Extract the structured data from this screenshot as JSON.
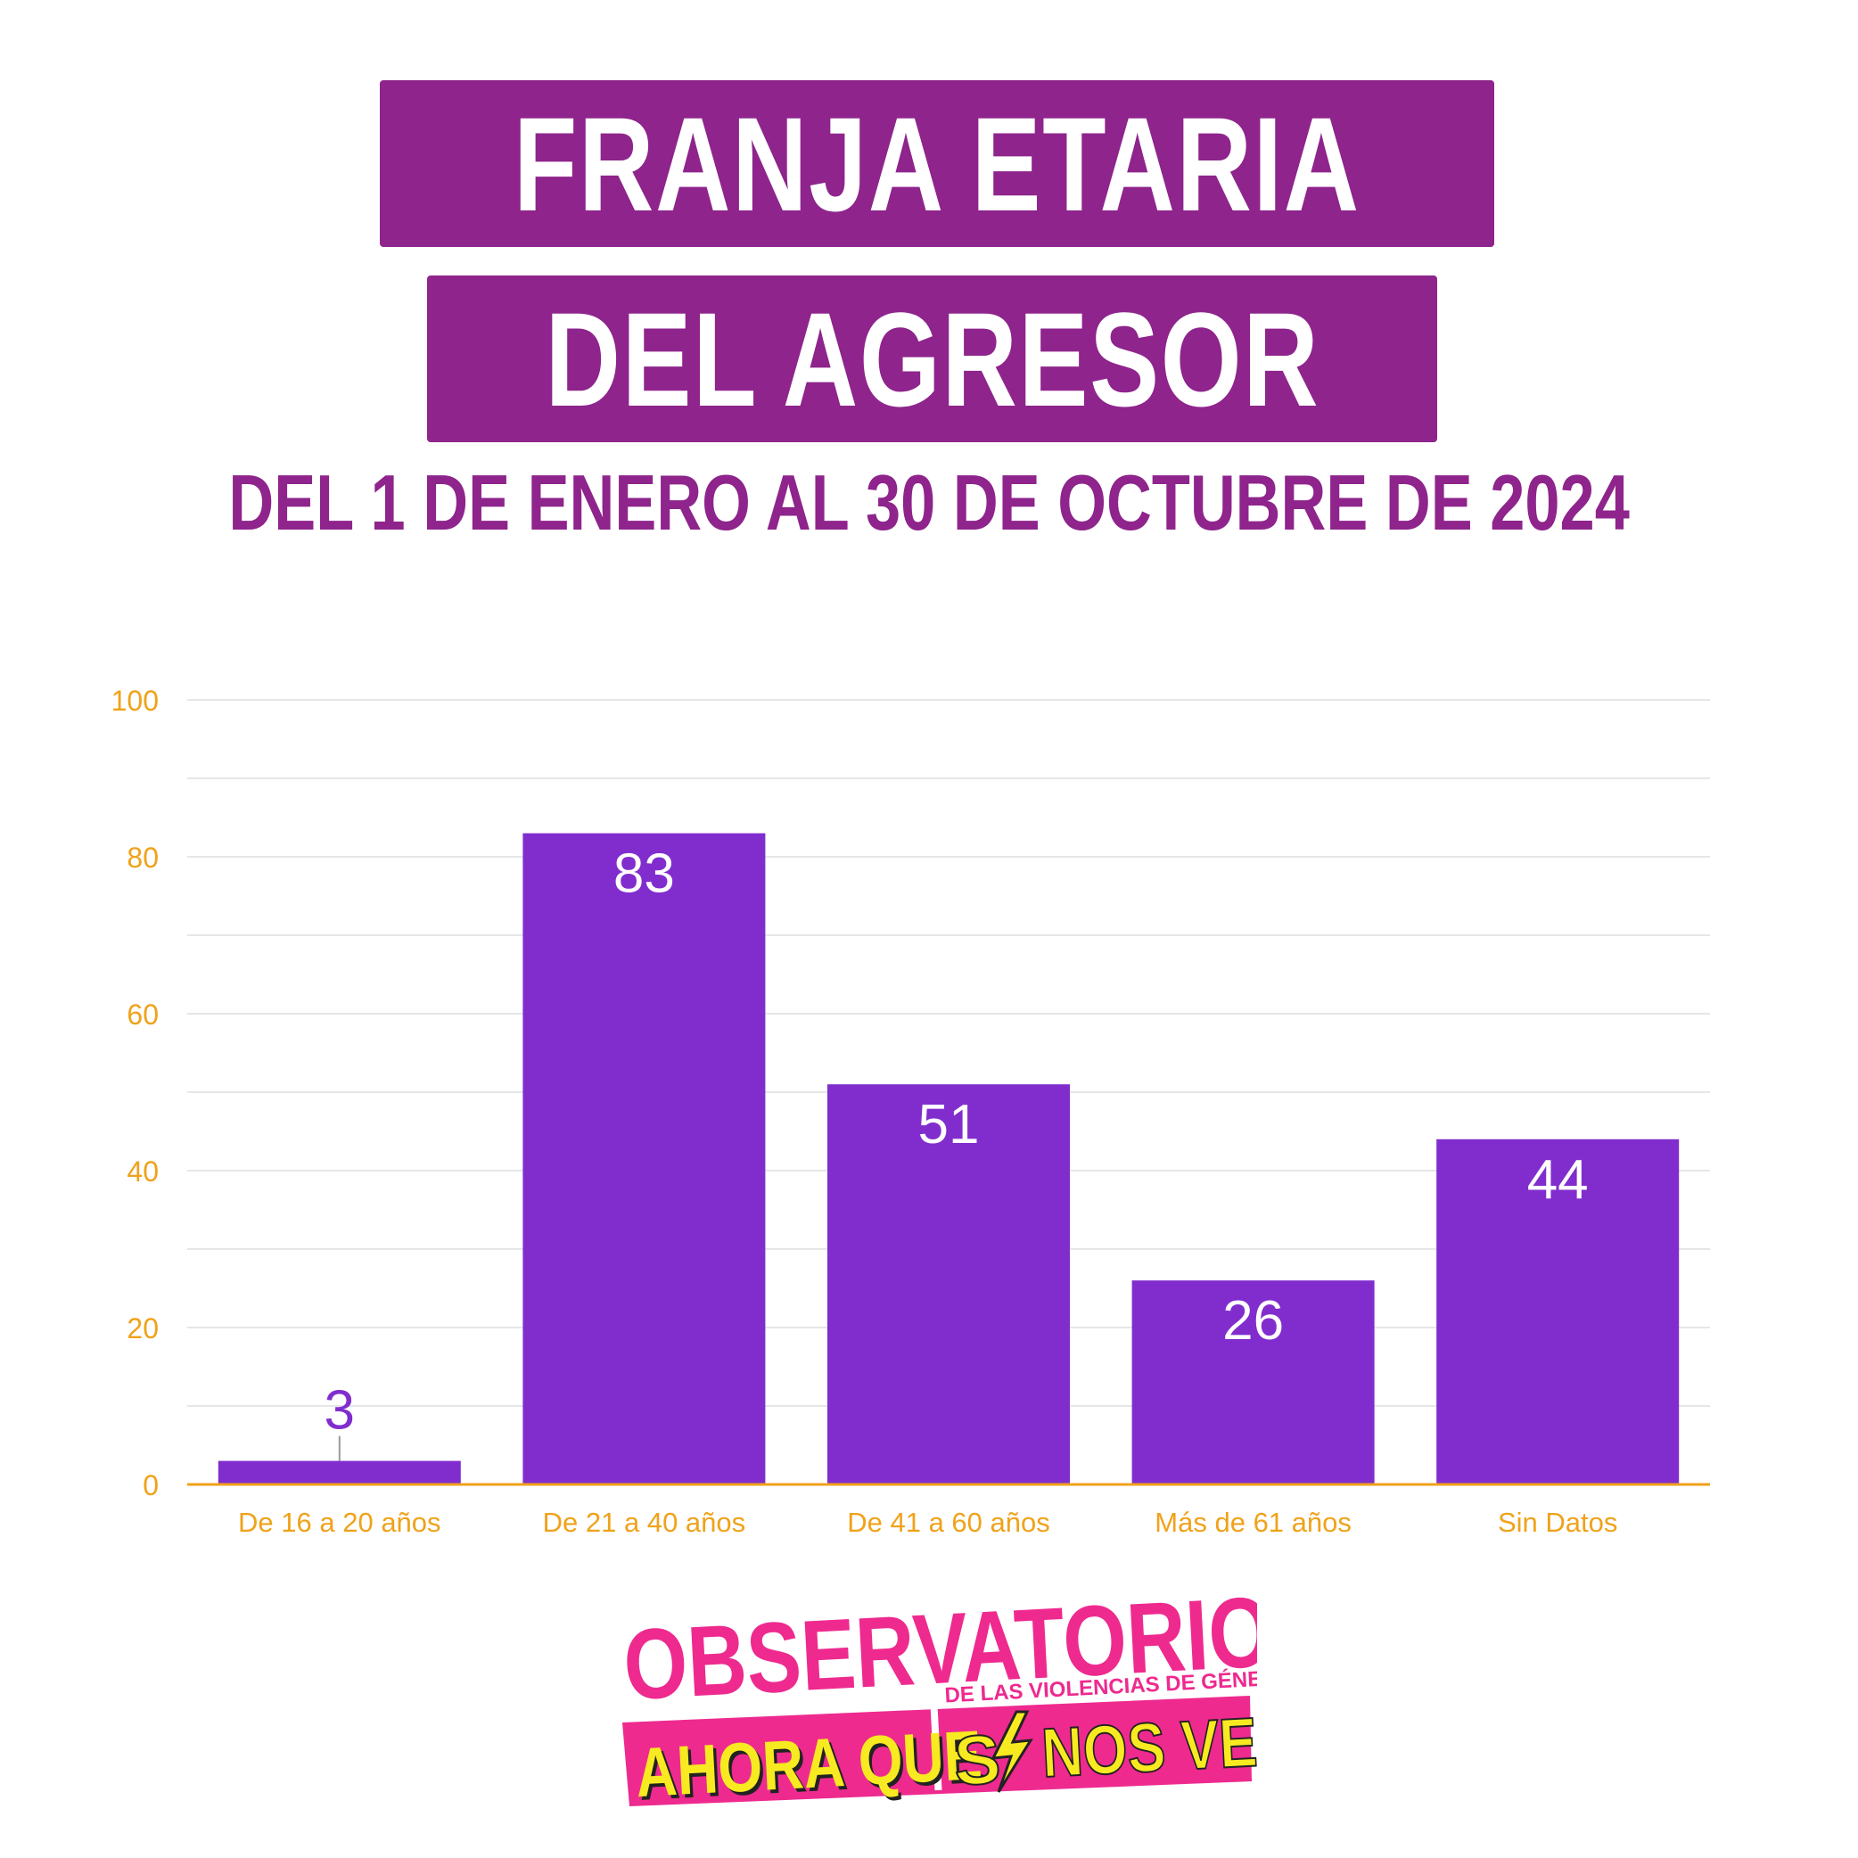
{
  "title": {
    "line1": "FRANJA ETARIA",
    "line2": "DEL AGRESOR",
    "subtitle": "DEL 1 DE ENERO AL 30 DE OCTUBRE DE 2024"
  },
  "colors": {
    "title_bg": "#8e248c",
    "bar": "#812dce",
    "axis_text": "#f0a21a",
    "grid": "#e6e6e6",
    "logo_pink": "#ee2a8f",
    "logo_yellow": "#f7ea20"
  },
  "chart_data": {
    "type": "bar",
    "categories": [
      "De 16 a 20 años",
      "De 21 a 40 años",
      "De 41 a 60 años",
      "Más de 61 años",
      "Sin Datos"
    ],
    "values": [
      3,
      83,
      51,
      26,
      44
    ],
    "ylim": [
      0,
      100
    ],
    "yticks": [
      0,
      20,
      40,
      60,
      80,
      100
    ],
    "grid": true,
    "data_labels": true
  },
  "logo": {
    "line1": "OBSERVATORIO",
    "line2": "DE LAS VIOLENCIAS DE GÉNERO",
    "line3a": "AHORA QUE",
    "line3b": "S",
    "line3c": "NOS VEN"
  }
}
